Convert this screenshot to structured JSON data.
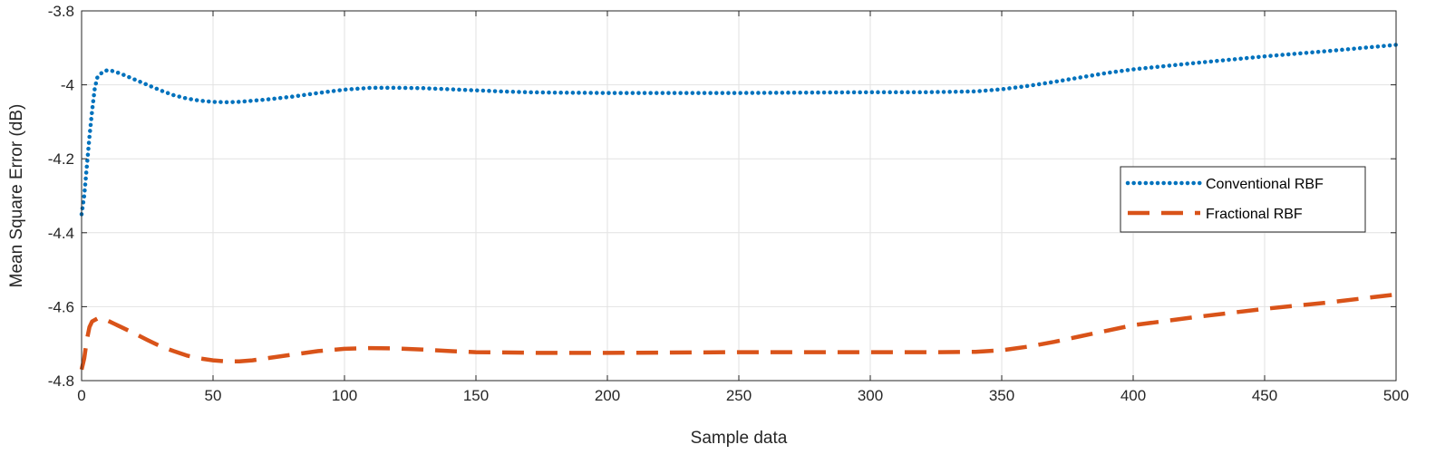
{
  "chart_data": {
    "type": "line",
    "xlabel": "Sample data",
    "ylabel": "Mean Square Error (dB)",
    "xlim": [
      0,
      500
    ],
    "ylim": [
      -4.8,
      -3.8
    ],
    "xticks": [
      0,
      50,
      100,
      150,
      200,
      250,
      300,
      350,
      400,
      450,
      500
    ],
    "xtick_labels": [
      "0",
      "50",
      "100",
      "150",
      "200",
      "250",
      "300",
      "350",
      "400",
      "450",
      "500"
    ],
    "yticks": [
      -3.8,
      -4.0,
      -4.2,
      -4.4,
      -4.6,
      -4.8
    ],
    "ytick_labels": [
      "-3.8",
      "-4",
      "-4.2",
      "-4.4",
      "-4.6",
      "-4.8"
    ],
    "grid": true,
    "legend_position": "right",
    "series": [
      {
        "name": "Conventional RBF",
        "color": "#0072BD",
        "style": "dotted",
        "points": [
          [
            0,
            -4.35
          ],
          [
            1,
            -4.3
          ],
          [
            2,
            -4.22
          ],
          [
            3,
            -4.14
          ],
          [
            4,
            -4.07
          ],
          [
            5,
            -4.01
          ],
          [
            6,
            -3.98
          ],
          [
            8,
            -3.965
          ],
          [
            10,
            -3.96
          ],
          [
            12,
            -3.963
          ],
          [
            15,
            -3.97
          ],
          [
            20,
            -3.985
          ],
          [
            25,
            -4.0
          ],
          [
            30,
            -4.015
          ],
          [
            35,
            -4.028
          ],
          [
            40,
            -4.037
          ],
          [
            45,
            -4.043
          ],
          [
            50,
            -4.046
          ],
          [
            55,
            -4.047
          ],
          [
            60,
            -4.046
          ],
          [
            70,
            -4.04
          ],
          [
            80,
            -4.032
          ],
          [
            90,
            -4.022
          ],
          [
            100,
            -4.013
          ],
          [
            110,
            -4.008
          ],
          [
            120,
            -4.008
          ],
          [
            130,
            -4.009
          ],
          [
            140,
            -4.012
          ],
          [
            150,
            -4.015
          ],
          [
            160,
            -4.018
          ],
          [
            170,
            -4.02
          ],
          [
            180,
            -4.021
          ],
          [
            200,
            -4.022
          ],
          [
            250,
            -4.022
          ],
          [
            300,
            -4.02
          ],
          [
            320,
            -4.02
          ],
          [
            340,
            -4.018
          ],
          [
            350,
            -4.012
          ],
          [
            360,
            -4.003
          ],
          [
            370,
            -3.992
          ],
          [
            380,
            -3.98
          ],
          [
            390,
            -3.968
          ],
          [
            400,
            -3.958
          ],
          [
            425,
            -3.94
          ],
          [
            450,
            -3.923
          ],
          [
            475,
            -3.908
          ],
          [
            500,
            -3.892
          ]
        ]
      },
      {
        "name": "Fractional RBF",
        "color": "#D95319",
        "style": "dashed",
        "points": [
          [
            0,
            -4.77
          ],
          [
            1,
            -4.74
          ],
          [
            2,
            -4.69
          ],
          [
            3,
            -4.655
          ],
          [
            4,
            -4.64
          ],
          [
            6,
            -4.632
          ],
          [
            8,
            -4.632
          ],
          [
            10,
            -4.638
          ],
          [
            15,
            -4.655
          ],
          [
            20,
            -4.672
          ],
          [
            25,
            -4.69
          ],
          [
            30,
            -4.707
          ],
          [
            35,
            -4.72
          ],
          [
            40,
            -4.732
          ],
          [
            45,
            -4.74
          ],
          [
            50,
            -4.745
          ],
          [
            55,
            -4.748
          ],
          [
            60,
            -4.748
          ],
          [
            65,
            -4.745
          ],
          [
            70,
            -4.74
          ],
          [
            80,
            -4.73
          ],
          [
            90,
            -4.72
          ],
          [
            100,
            -4.714
          ],
          [
            110,
            -4.712
          ],
          [
            120,
            -4.713
          ],
          [
            130,
            -4.716
          ],
          [
            140,
            -4.72
          ],
          [
            150,
            -4.723
          ],
          [
            175,
            -4.725
          ],
          [
            200,
            -4.725
          ],
          [
            250,
            -4.723
          ],
          [
            300,
            -4.723
          ],
          [
            325,
            -4.723
          ],
          [
            340,
            -4.722
          ],
          [
            350,
            -4.718
          ],
          [
            360,
            -4.708
          ],
          [
            370,
            -4.695
          ],
          [
            380,
            -4.68
          ],
          [
            390,
            -4.665
          ],
          [
            400,
            -4.65
          ],
          [
            425,
            -4.627
          ],
          [
            450,
            -4.606
          ],
          [
            475,
            -4.588
          ],
          [
            500,
            -4.567
          ]
        ]
      }
    ]
  }
}
